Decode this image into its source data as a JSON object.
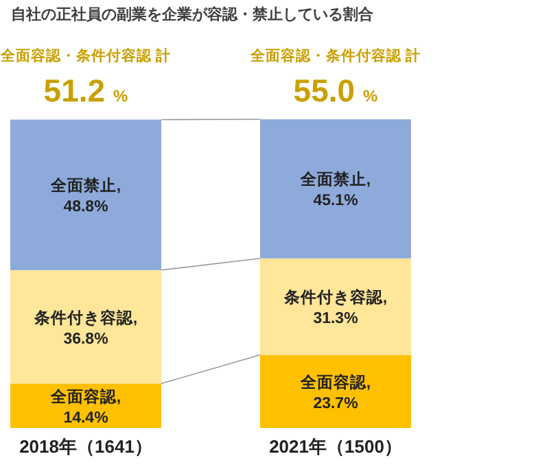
{
  "chart_data": {
    "type": "bar",
    "stacked": true,
    "title": "自社の正社員の副業を企業が容認・禁止している割合",
    "categories": [
      "2018年（1641）",
      "2021年（1500）"
    ],
    "series": [
      {
        "name": "全面容認,",
        "color": "#ffc000",
        "values": [
          14.4,
          23.7
        ],
        "value_labels": [
          "14.4%",
          "23.7%"
        ]
      },
      {
        "name": "条件付き容認,",
        "color": "#ffe699",
        "values": [
          36.8,
          31.3
        ],
        "value_labels": [
          "36.8%",
          "31.3%"
        ]
      },
      {
        "name": "全面禁止,",
        "color": "#8eaadb",
        "values": [
          48.8,
          45.1
        ],
        "value_labels": [
          "48.8%",
          "45.1%"
        ]
      }
    ],
    "annotations": [
      "全面容認・条件付容認 計",
      "51.2 %",
      "全面容認・条件付容認 計",
      "55.0 %"
    ]
  }
}
